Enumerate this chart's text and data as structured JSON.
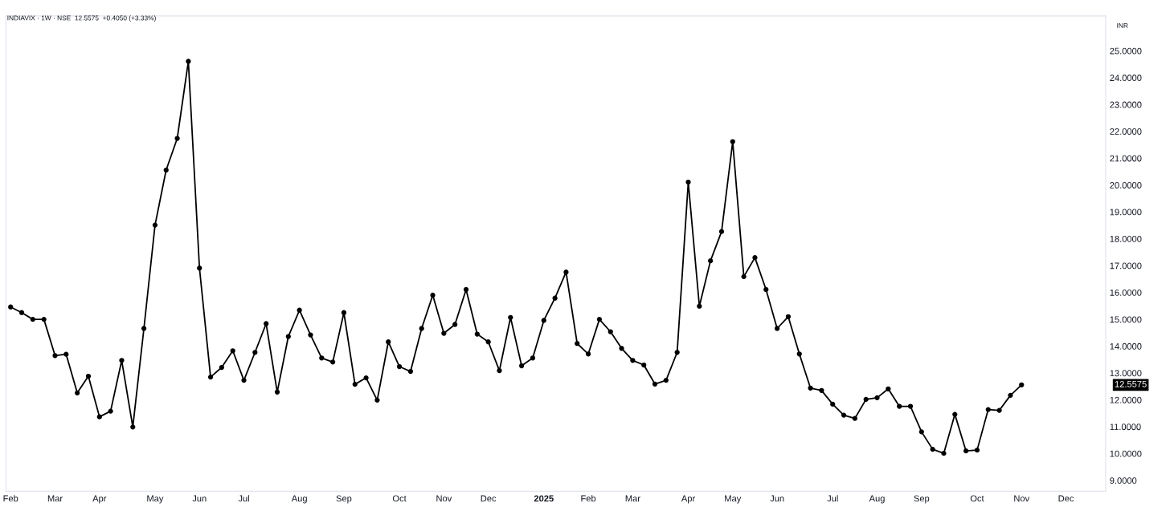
{
  "chart_data": {
    "type": "line",
    "title": "INDIAVIX · 1W · NSE  12.5575  +0.4050 (+3.33%)",
    "annotations": [
      "INR",
      "12.5575"
    ],
    "x": [
      "2024-02-05",
      "2024-02-12",
      "2024-02-19",
      "2024-02-26",
      "2024-03-04",
      "2024-03-11",
      "2024-03-18",
      "2024-03-25",
      "2024-04-01",
      "2024-04-08",
      "2024-04-15",
      "2024-04-22",
      "2024-04-29",
      "2024-05-06",
      "2024-05-13",
      "2024-05-20",
      "2024-05-27",
      "2024-06-03",
      "2024-06-10",
      "2024-06-17",
      "2024-06-24",
      "2024-07-01",
      "2024-07-08",
      "2024-07-15",
      "2024-07-22",
      "2024-07-29",
      "2024-08-05",
      "2024-08-12",
      "2024-08-19",
      "2024-08-26",
      "2024-09-02",
      "2024-09-09",
      "2024-09-16",
      "2024-09-23",
      "2024-09-30",
      "2024-10-07",
      "2024-10-14",
      "2024-10-21",
      "2024-10-28",
      "2024-11-04",
      "2024-11-11",
      "2024-11-18",
      "2024-11-25",
      "2024-12-02",
      "2024-12-09",
      "2024-12-16",
      "2024-12-23",
      "2024-12-30",
      "2025-01-06",
      "2025-01-13",
      "2025-01-20",
      "2025-01-27",
      "2025-02-03",
      "2025-02-10",
      "2025-02-17",
      "2025-02-24",
      "2025-03-03",
      "2025-03-10",
      "2025-03-17",
      "2025-03-24",
      "2025-03-31",
      "2025-04-07",
      "2025-04-14",
      "2025-04-21",
      "2025-04-28",
      "2025-05-05",
      "2025-05-12",
      "2025-05-19",
      "2025-05-26",
      "2025-06-02",
      "2025-06-09",
      "2025-06-16",
      "2025-06-23",
      "2025-06-30",
      "2025-07-07",
      "2025-07-14",
      "2025-07-21",
      "2025-07-28",
      "2025-08-04",
      "2025-08-11",
      "2025-08-18",
      "2025-08-25",
      "2025-09-01",
      "2025-09-08",
      "2025-09-15",
      "2025-09-22",
      "2025-09-29",
      "2025-10-06",
      "2025-10-13",
      "2025-10-20",
      "2025-10-27",
      "2025-11-03"
    ],
    "series": [
      {
        "color": "#000000",
        "values": [
          15.46,
          15.25,
          15.0,
          15.0,
          13.65,
          13.7,
          12.26,
          12.88,
          11.37,
          11.58,
          13.47,
          10.99,
          14.66,
          18.51,
          20.56,
          21.74,
          24.61,
          16.91,
          12.85,
          13.21,
          13.83,
          12.73,
          13.77,
          14.84,
          12.29,
          14.36,
          15.34,
          14.42,
          13.56,
          13.41,
          15.25,
          12.58,
          12.82,
          11.99,
          14.16,
          13.24,
          13.06,
          14.66,
          15.9,
          14.48,
          14.81,
          16.11,
          14.45,
          14.16,
          13.09,
          15.07,
          13.27,
          13.56,
          14.96,
          15.79,
          16.76,
          14.1,
          13.71,
          15.0,
          14.54,
          13.92,
          13.47,
          13.3,
          12.59,
          12.73,
          13.77,
          20.11,
          15.49,
          17.18,
          18.27,
          21.62,
          16.59,
          17.3,
          16.11,
          14.66,
          15.1,
          13.71,
          12.44,
          12.35,
          11.84,
          11.43,
          11.31,
          12.02,
          12.08,
          12.41,
          11.76,
          11.76,
          10.81,
          10.16,
          10.01,
          11.46,
          10.1,
          10.13,
          11.64,
          11.61,
          12.17,
          12.56
        ]
      }
    ],
    "xlim": [
      "2024-02-02",
      "2025-12-26"
    ],
    "xticks": [
      {
        "value": "2024-02-05",
        "label": "Feb"
      },
      {
        "value": "2024-03-04",
        "label": "Mar"
      },
      {
        "value": "2024-04-01",
        "label": "Apr"
      },
      {
        "value": "2024-05-06",
        "label": "May"
      },
      {
        "value": "2024-06-03",
        "label": "Jun"
      },
      {
        "value": "2024-07-01",
        "label": "Jul"
      },
      {
        "value": "2024-08-05",
        "label": "Aug"
      },
      {
        "value": "2024-09-02",
        "label": "Sep"
      },
      {
        "value": "2024-10-07",
        "label": "Oct"
      },
      {
        "value": "2024-11-04",
        "label": "Nov"
      },
      {
        "value": "2024-12-02",
        "label": "Dec"
      },
      {
        "value": "2025-01-06",
        "label": "2025"
      },
      {
        "value": "2025-02-03",
        "label": "Feb"
      },
      {
        "value": "2025-03-03",
        "label": "Mar"
      },
      {
        "value": "2025-04-07",
        "label": "Apr"
      },
      {
        "value": "2025-05-05",
        "label": "May"
      },
      {
        "value": "2025-06-02",
        "label": "Jun"
      },
      {
        "value": "2025-07-07",
        "label": "Jul"
      },
      {
        "value": "2025-08-04",
        "label": "Aug"
      },
      {
        "value": "2025-09-01",
        "label": "Sep"
      },
      {
        "value": "2025-10-06",
        "label": "Oct"
      },
      {
        "value": "2025-11-03",
        "label": "Nov"
      },
      {
        "value": "2025-12-01",
        "label": "Dec"
      }
    ],
    "ylim": [
      8.6,
      26.3
    ],
    "yticks": [
      {
        "value": 9,
        "label": "9.0000"
      },
      {
        "value": 10,
        "label": "10.0000"
      },
      {
        "value": 11,
        "label": "11.0000"
      },
      {
        "value": 12,
        "label": "12.0000"
      },
      {
        "value": 13,
        "label": "13.0000"
      },
      {
        "value": 14,
        "label": "14.0000"
      },
      {
        "value": 15,
        "label": "15.0000"
      },
      {
        "value": 16,
        "label": "16.0000"
      },
      {
        "value": 17,
        "label": "17.0000"
      },
      {
        "value": 18,
        "label": "18.0000"
      },
      {
        "value": 19,
        "label": "19.0000"
      },
      {
        "value": 20,
        "label": "20.0000"
      },
      {
        "value": 21,
        "label": "21.0000"
      },
      {
        "value": 22,
        "label": "22.0000"
      },
      {
        "value": 23,
        "label": "23.0000"
      },
      {
        "value": 24,
        "label": "24.0000"
      },
      {
        "value": 25,
        "label": "25.0000"
      }
    ],
    "grid": false,
    "legend": false,
    "marker": "circle",
    "line_style": "solid"
  }
}
